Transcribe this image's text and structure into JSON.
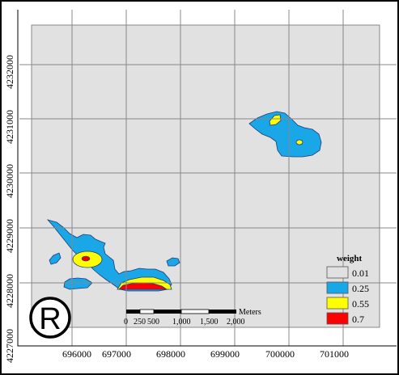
{
  "map": {
    "x_ticks": [
      "696000",
      "697000",
      "698000",
      "699000",
      "700000",
      "701000"
    ],
    "y_ticks": [
      "4232000",
      "4231000",
      "4230000",
      "4229000",
      "4228000",
      "4227000"
    ],
    "background_color": "#e1e1e1"
  },
  "legend": {
    "title": "weight",
    "items": [
      {
        "label": "0.01",
        "color": "#e1e1e1"
      },
      {
        "label": "0.25",
        "color": "#1aa7e8"
      },
      {
        "label": "0.55",
        "color": "#ffff00"
      },
      {
        "label": "0.7",
        "color": "#ff0000"
      }
    ]
  },
  "scale_bar": {
    "unit": "Meters",
    "labels": [
      "0",
      "250",
      "500",
      "1,000",
      "1,500",
      "2,000"
    ]
  },
  "logo": {
    "text": "R",
    "icon": "registered-trademark-icon"
  },
  "colors": {
    "low": "#1aa7e8",
    "mid": "#ffff00",
    "high": "#ff0000",
    "outline": "#1e3c78"
  }
}
